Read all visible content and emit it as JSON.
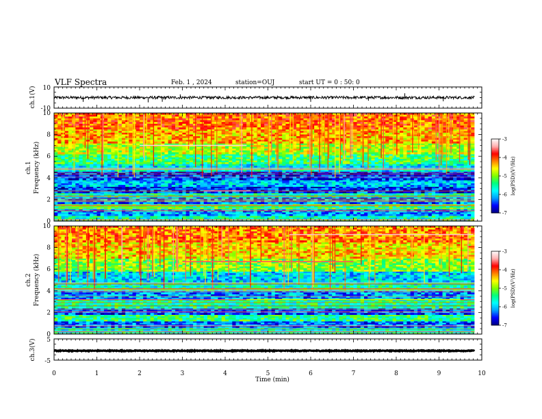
{
  "header": {
    "title": "VLF Spectra",
    "date": "Feb. 1 , 2024",
    "station": "station=OUJ",
    "start": "start UT = 0 : 50: 0"
  },
  "chart_data": [
    {
      "type": "line",
      "name": "waveform-ch1",
      "ylabel": "ch.1(V)",
      "ylim": [
        -10,
        10
      ],
      "yticks": [
        "10",
        "-10"
      ],
      "xlim": [
        0,
        10
      ],
      "x_extent": [
        0,
        9.83
      ],
      "baseline": 0,
      "noise_amplitude": 1.3,
      "spikes": [
        {
          "x": 0.68,
          "y": -4
        },
        {
          "x": 2.2,
          "y": -4.5
        },
        {
          "x": 2.53,
          "y": -4
        },
        {
          "x": 2.95,
          "y": 3
        },
        {
          "x": 6.0,
          "y": -4
        },
        {
          "x": 7.35,
          "y": -3
        },
        {
          "x": 8.2,
          "y": 4
        },
        {
          "x": 9.1,
          "y": -3.5
        }
      ]
    },
    {
      "type": "heatmap",
      "name": "spectrogram-ch1",
      "ylabel": "ch.1 Frequency (kHz)",
      "ylim": [
        0,
        10
      ],
      "yticks": [
        "0",
        "2",
        "4",
        "6",
        "8",
        "10"
      ],
      "xlim": [
        0,
        10
      ],
      "x_extent": [
        0,
        9.83
      ],
      "colorbar": {
        "label": "log(PSD)(V²/Hz)",
        "range": [
          -7,
          -3
        ],
        "ticks": [
          "-3",
          "-4",
          "-5",
          "-6",
          "-7"
        ]
      },
      "bands": [
        {
          "f": [
            0,
            0.5
          ],
          "v": -5.6
        },
        {
          "f": [
            0.5,
            1.1
          ],
          "v": -6.2
        },
        {
          "f": [
            1.1,
            1.6
          ],
          "v": -5.4
        },
        {
          "f": [
            1.6,
            2.2
          ],
          "v": -6.3
        },
        {
          "f": [
            2.2,
            2.6
          ],
          "v": -5.6
        },
        {
          "f": [
            2.6,
            3.2
          ],
          "v": -6.5
        },
        {
          "f": [
            3.2,
            3.8
          ],
          "v": -6.0
        },
        {
          "f": [
            3.8,
            4.6
          ],
          "v": -6.5
        },
        {
          "f": [
            4.6,
            5.3
          ],
          "v": -5.8
        },
        {
          "f": [
            5.3,
            6.2
          ],
          "v": -5.3
        },
        {
          "f": [
            6.2,
            7.2
          ],
          "v": -4.8
        },
        {
          "f": [
            7.2,
            8.5
          ],
          "v": -4.4
        },
        {
          "f": [
            8.5,
            10
          ],
          "v": -4.1
        }
      ],
      "lines": [
        {
          "f": 7.0,
          "x": [
            2.0,
            4.5
          ],
          "v": -3.2
        },
        {
          "f": 2.8,
          "x": [
            3.5,
            4.6
          ],
          "v": -3.5
        },
        {
          "f": 1.3,
          "x": [
            0.1,
            2.8
          ],
          "v": -5.0
        }
      ]
    },
    {
      "type": "heatmap",
      "name": "spectrogram-ch2",
      "ylabel": "ch.2 Frequency (kHz)",
      "ylim": [
        0,
        10
      ],
      "yticks": [
        "0",
        "2",
        "4",
        "6",
        "8",
        "10"
      ],
      "xlim": [
        0,
        10
      ],
      "x_extent": [
        0,
        9.83
      ],
      "colorbar": {
        "label": "log(PSD)(V²/Hz)",
        "range": [
          -7,
          -3
        ],
        "ticks": [
          "-3",
          "-4",
          "-5",
          "-6",
          "-7"
        ]
      },
      "bands": [
        {
          "f": [
            0,
            0.6
          ],
          "v": -5.7
        },
        {
          "f": [
            0.6,
            1.2
          ],
          "v": -6.3
        },
        {
          "f": [
            1.2,
            1.8
          ],
          "v": -5.4
        },
        {
          "f": [
            1.8,
            2.4
          ],
          "v": -6.4
        },
        {
          "f": [
            2.4,
            3.2
          ],
          "v": -5.5
        },
        {
          "f": [
            3.2,
            4.0
          ],
          "v": -6.2
        },
        {
          "f": [
            4.0,
            4.8
          ],
          "v": -5.6
        },
        {
          "f": [
            4.8,
            5.8
          ],
          "v": -5.9
        },
        {
          "f": [
            5.8,
            7.0
          ],
          "v": -5.0
        },
        {
          "f": [
            7.0,
            8.5
          ],
          "v": -4.5
        },
        {
          "f": [
            8.5,
            10
          ],
          "v": -4.2
        }
      ],
      "lines": [
        {
          "f": 9.2,
          "x": [
            5.5,
            9.8
          ],
          "v": -3.3
        },
        {
          "f": 6.7,
          "x": [
            3.0,
            7.0
          ],
          "v": -3.6
        },
        {
          "f": 3.2,
          "x": [
            4.5,
            9.5
          ],
          "v": -4.8
        }
      ]
    },
    {
      "type": "line",
      "name": "waveform-ch3",
      "ylabel": "ch.3(V)",
      "ylim": [
        -5,
        5
      ],
      "yticks": [
        "5",
        "-5"
      ],
      "xlim": [
        0,
        10
      ],
      "x_extent": [
        0,
        9.83
      ],
      "baseline": -0.6,
      "noise_amplitude": 0.2
    }
  ],
  "xaxis": {
    "label": "Time (min)",
    "ticks": [
      "0",
      "1",
      "2",
      "3",
      "4",
      "5",
      "6",
      "7",
      "8",
      "9",
      "10"
    ]
  },
  "colors": {
    "scale": [
      "#000080",
      "#0000ff",
      "#00a0ff",
      "#00ffff",
      "#00ff80",
      "#80ff00",
      "#ffff00",
      "#ff8000",
      "#ff0000",
      "#ffb0b0",
      "#ffffff"
    ]
  }
}
